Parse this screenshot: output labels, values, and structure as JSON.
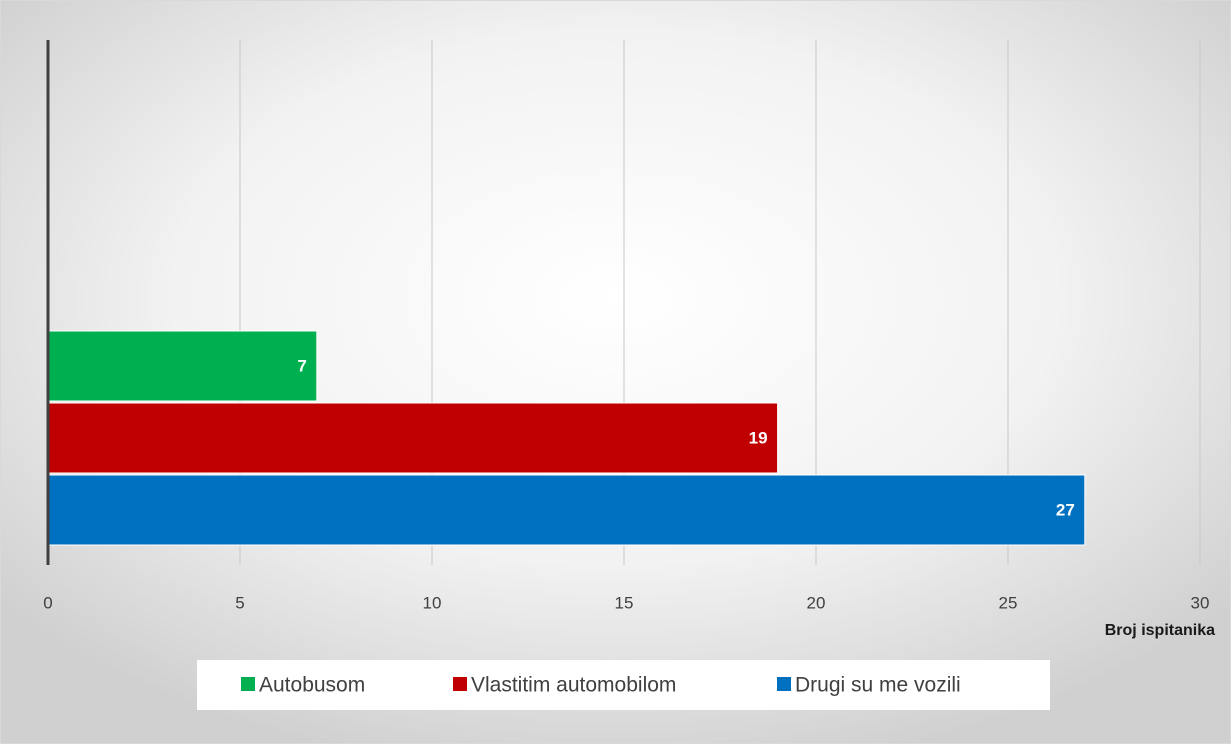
{
  "chart_data": {
    "type": "bar",
    "orientation": "horizontal",
    "categories": [
      null
    ],
    "series": [
      {
        "name": "Autobusom",
        "color": "#00b050",
        "values": [
          7
        ]
      },
      {
        "name": "Vlastitim automobilom",
        "color": "#c00000",
        "values": [
          19
        ]
      },
      {
        "name": "Drugi su me vozili",
        "color": "#0070c0",
        "values": [
          27
        ]
      }
    ],
    "xlabel": "Broj ispitanika",
    "xlim": [
      0,
      30
    ],
    "xticks": [
      0,
      5,
      10,
      15,
      20,
      25,
      30
    ],
    "grid": true,
    "legend": "bottom"
  }
}
